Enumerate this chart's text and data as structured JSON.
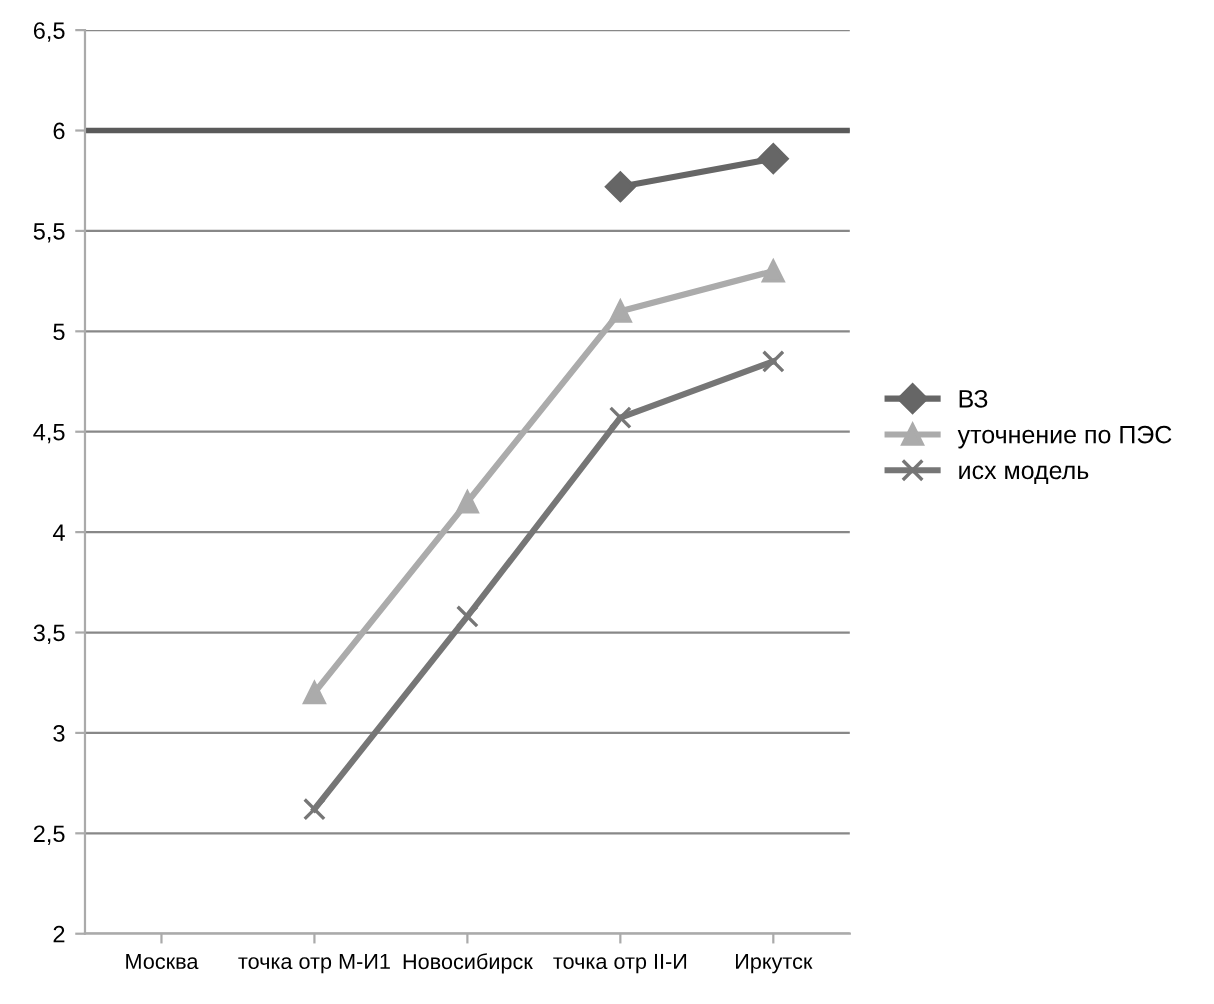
{
  "chart_data": {
    "type": "line",
    "categories": [
      "Москва",
      "точка отр М-И1",
      "Новосибирск",
      "точка отр II-И",
      "Иркутск"
    ],
    "series": [
      {
        "name": "ВЗ",
        "color": "#666666",
        "marker": "diamond",
        "values": [
          null,
          null,
          null,
          5.72,
          5.86
        ]
      },
      {
        "name": "уточнение по ПЭС",
        "color": "#ababab",
        "marker": "triangle",
        "values": [
          null,
          3.2,
          4.15,
          5.1,
          5.3
        ]
      },
      {
        "name": "исх модель",
        "color": "#767676",
        "marker": "cross",
        "values": [
          null,
          2.62,
          3.58,
          4.57,
          4.85
        ]
      }
    ],
    "ylim": [
      2,
      6.5
    ],
    "yticks": [
      2,
      {
        "value": 2.5,
        "label": "2,5"
      },
      3,
      {
        "value": 3.5,
        "label": "3,5"
      },
      4,
      {
        "value": 4.5,
        "label": "4,5"
      },
      5,
      {
        "value": 5.5,
        "label": "5,5"
      },
      6,
      {
        "value": 6.5,
        "label": "6,5"
      }
    ],
    "ref_lines": [
      {
        "axis": "y",
        "value": 6,
        "label": null,
        "color": "#5a5a5a"
      }
    ],
    "grid": "y",
    "legend": "right"
  }
}
